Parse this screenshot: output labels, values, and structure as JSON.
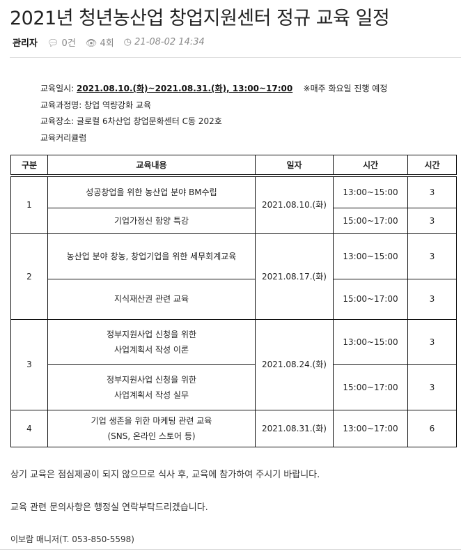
{
  "title": "2021년 청년농산업 창업지원센터 정규 교육 일정",
  "meta": {
    "author": "관리자",
    "comments": "0건",
    "views": "4회",
    "date": "21-08-02 14:34"
  },
  "info": {
    "date_label": "교육일시: ",
    "date_value": "2021.08.10.(화)~2021.08.31.(화), 13:00~17:00",
    "date_note": "※매주 화요일 진행 예정",
    "course": "교육과정명: 창업 역량강화 교육",
    "place": "교육장소: 글로컬 6차산업 창업문화센터 C동 202호",
    "curriculum": "교육커리큘럼"
  },
  "table": {
    "headers": [
      "구분",
      "교육내용",
      "일자",
      "시간",
      "시간"
    ],
    "rows": [
      {
        "no": "1",
        "date": "2021.08.10.(화)",
        "items": [
          {
            "content": "성공창업을 위한 농산업 분야 BM수립",
            "time": "13:00~15:00",
            "hours": "3"
          },
          {
            "content": "기업가정신 함양 특강",
            "time": "15:00~17:00",
            "hours": "3"
          }
        ]
      },
      {
        "no": "2",
        "date": "2021.08.17.(화)",
        "items": [
          {
            "content": "농산업 분야 창농, 창업기업을 위한 세무회계교육",
            "time": "13:00~15:00",
            "hours": "3"
          },
          {
            "content": "지식재산권 관련 교육",
            "time": "15:00~17:00",
            "hours": "3"
          }
        ]
      },
      {
        "no": "3",
        "date": "2021.08.24.(화)",
        "items": [
          {
            "content": "정부지원사업 신청을 위한",
            "content2": "사업계획서 작성 이론",
            "time": "13:00~15:00",
            "hours": "3"
          },
          {
            "content": "정부지원사업 신청을 위한",
            "content2": "사업계획서 작성 실무",
            "time": "15:00~17:00",
            "hours": "3"
          }
        ]
      },
      {
        "no": "4",
        "date": "2021.08.31.(화)",
        "items": [
          {
            "content": "기업 생존을 위한 마케팅 관련 교육",
            "content2": "(SNS, 온라인 스토어 등)",
            "time": "13:00~17:00",
            "hours": "6"
          }
        ]
      }
    ]
  },
  "footer": {
    "note1": "상기 교육은 점심제공이 되지 않으므로 식사 후, 교육에 참가하여 주시기 바랍니다.",
    "note2": "교육 관련 문의사항은 행정실 연락부탁드리겠습니다.",
    "contact": "이보람 매니저(T. 053-850-5598)"
  }
}
